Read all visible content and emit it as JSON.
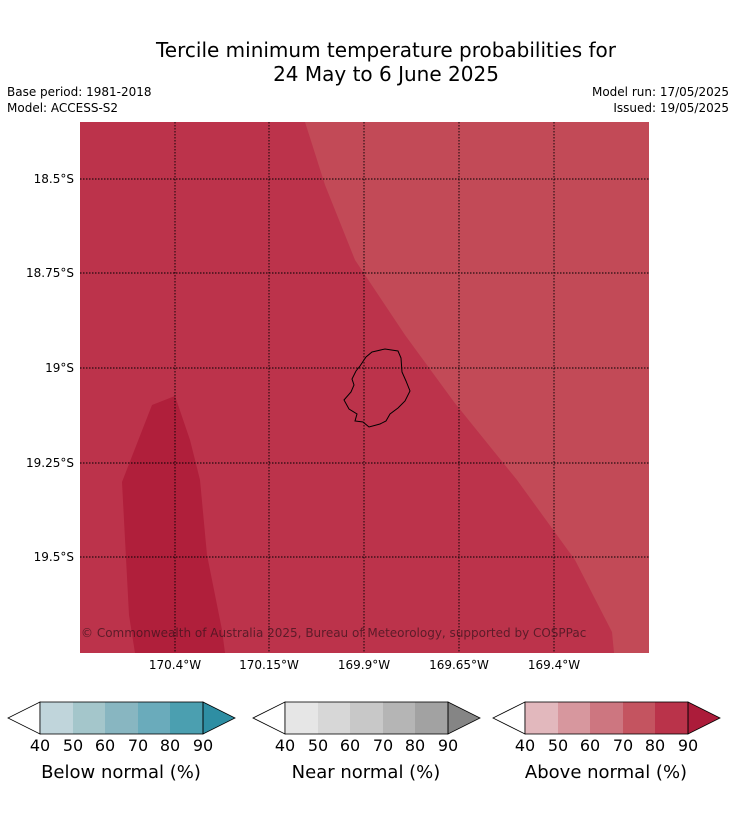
{
  "title_line1": "Tercile minimum temperature probabilities for",
  "title_line2": "24 May to 6 June 2025",
  "base_period": "Base period: 1981-2018",
  "model": "Model: ACCESS-S2",
  "model_run": "Model run: 17/05/2025",
  "issued": "Issued: 19/05/2025",
  "lat_labels": [
    "18.5°S",
    "18.75°S",
    "19°S",
    "19.25°S",
    "19.5°S"
  ],
  "lon_labels": [
    "170.4°W",
    "170.15°W",
    "169.9°W",
    "169.65°W",
    "169.4°W"
  ],
  "copyright": "© Commonwealth of Australia 2025, Bureau of Meteorology, supported by COSPPac",
  "colorbars": {
    "ticks": [
      "40",
      "50",
      "60",
      "70",
      "80",
      "90"
    ],
    "below": {
      "title": "Below normal (%)",
      "colors": [
        "#c0d5db",
        "#a4c6cb",
        "#88b6c1",
        "#6aabbb",
        "#4b9fb0",
        "#2e8ea3"
      ]
    },
    "near": {
      "title": "Near normal (%)",
      "colors": [
        "#e6e6e6",
        "#d7d7d7",
        "#c8c8c8",
        "#b5b5b5",
        "#a2a2a2",
        "#858585"
      ]
    },
    "above": {
      "title": "Above normal (%)",
      "colors": [
        "#e2b8bd",
        "#d7979e",
        "#cd7680",
        "#c45460",
        "#ba334a",
        "#ac1c3a"
      ]
    }
  },
  "map_colors": {
    "band_70_80": "#c24a57",
    "band_80_90": "#bc334b",
    "band_90_plus": "#b01f3b"
  }
}
